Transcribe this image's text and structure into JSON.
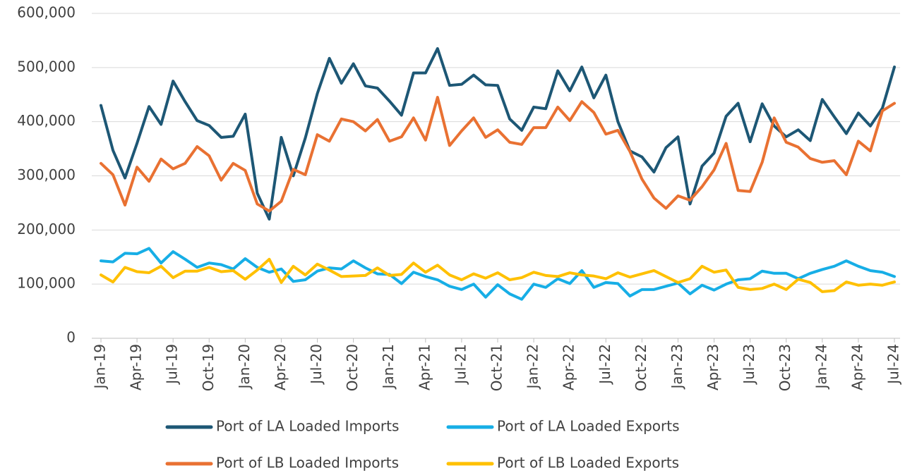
{
  "chart_data": {
    "type": "line",
    "categories": [
      "Jan-19",
      null,
      null,
      "Apr-19",
      null,
      null,
      "Jul-19",
      null,
      null,
      "Oct-19",
      null,
      null,
      "Jan-20",
      null,
      null,
      "Apr-20",
      null,
      null,
      "Jul-20",
      null,
      null,
      "Oct-20",
      null,
      null,
      "Jan-21",
      null,
      null,
      "Apr-21",
      null,
      null,
      "Jul-21",
      null,
      null,
      "Oct-21",
      null,
      null,
      "Jan-22",
      null,
      null,
      "Apr-22",
      null,
      null,
      "Jul-22",
      null,
      null,
      "Oct-22",
      null,
      null,
      "Jan-23",
      null,
      null,
      "Apr-23",
      null,
      null,
      "Jul-23",
      null,
      null,
      "Oct-23",
      null,
      null,
      "Jan-24",
      null,
      null,
      "Apr-24",
      null,
      null,
      "Jul-24"
    ],
    "series": [
      {
        "name": "Port of LA Loaded Imports",
        "color": "#1d5775",
        "values": [
          430000,
          347000,
          296000,
          360000,
          428000,
          395000,
          475000,
          437000,
          402000,
          393000,
          371000,
          373000,
          414000,
          268000,
          220000,
          371000,
          300000,
          370000,
          452000,
          517000,
          471000,
          507000,
          466000,
          462000,
          438000,
          412000,
          490000,
          490000,
          535000,
          467000,
          469000,
          486000,
          468000,
          467000,
          405000,
          384000,
          427000,
          424000,
          494000,
          457000,
          501000,
          444000,
          486000,
          400000,
          346000,
          335000,
          307000,
          352000,
          372000,
          248000,
          318000,
          342000,
          410000,
          434000,
          363000,
          433000,
          392000,
          372000,
          385000,
          365000,
          441000,
          409000,
          378000,
          416000,
          392000,
          425000,
          501000
        ]
      },
      {
        "name": "Port of LA Loaded Exports",
        "color": "#17aee6",
        "values": [
          143000,
          141000,
          157000,
          156000,
          166000,
          139000,
          160000,
          146000,
          131000,
          139000,
          136000,
          128000,
          147000,
          131000,
          122000,
          128000,
          105000,
          108000,
          124000,
          130000,
          128000,
          143000,
          130000,
          119000,
          118000,
          101000,
          122000,
          114000,
          108000,
          96000,
          90000,
          100000,
          76000,
          99000,
          82000,
          72000,
          100000,
          94000,
          110000,
          101000,
          125000,
          94000,
          103000,
          101000,
          78000,
          90000,
          90000,
          96000,
          102000,
          82000,
          98000,
          89000,
          100000,
          108000,
          110000,
          124000,
          120000,
          120000,
          110000,
          120000,
          127000,
          133000,
          143000,
          133000,
          125000,
          122000,
          114000
        ]
      },
      {
        "name": "Port of LB Loaded Imports",
        "color": "#e97132",
        "values": [
          323000,
          302000,
          246000,
          316000,
          290000,
          331000,
          313000,
          323000,
          354000,
          337000,
          292000,
          323000,
          310000,
          248000,
          235000,
          253000,
          312000,
          302000,
          376000,
          364000,
          405000,
          400000,
          383000,
          404000,
          364000,
          372000,
          407000,
          366000,
          445000,
          356000,
          383000,
          407000,
          371000,
          385000,
          362000,
          358000,
          389000,
          389000,
          427000,
          402000,
          437000,
          417000,
          377000,
          384000,
          345000,
          294000,
          259000,
          240000,
          263000,
          255000,
          280000,
          311000,
          360000,
          273000,
          271000,
          325000,
          407000,
          362000,
          353000,
          332000,
          325000,
          328000,
          302000,
          364000,
          346000,
          420000,
          434000
        ]
      },
      {
        "name": "Port of LB Loaded Exports",
        "color": "#ffc000",
        "values": [
          117000,
          104000,
          131000,
          123000,
          121000,
          133000,
          112000,
          124000,
          124000,
          131000,
          123000,
          125000,
          109000,
          126000,
          146000,
          103000,
          133000,
          117000,
          137000,
          126000,
          114000,
          115000,
          116000,
          130000,
          116000,
          118000,
          139000,
          122000,
          135000,
          117000,
          108000,
          119000,
          111000,
          121000,
          108000,
          112000,
          122000,
          116000,
          114000,
          121000,
          117000,
          115000,
          110000,
          121000,
          113000,
          119000,
          125000,
          114000,
          103000,
          110000,
          133000,
          122000,
          126000,
          94000,
          90000,
          92000,
          100000,
          90000,
          109000,
          103000,
          86000,
          88000,
          104000,
          98000,
          100000,
          98000,
          104000
        ]
      }
    ],
    "ylim": [
      0,
      600000
    ],
    "yticks": [
      0,
      {
        "value": 100000,
        "label": "100,000"
      },
      {
        "value": 200000,
        "label": "200,000"
      },
      {
        "value": 300000,
        "label": "300,000"
      },
      {
        "value": 400000,
        "label": "400,000"
      },
      {
        "value": 500000,
        "label": "500,000"
      },
      {
        "value": 600000,
        "label": "600,000"
      }
    ],
    "grid": true,
    "legend": "bottom"
  }
}
